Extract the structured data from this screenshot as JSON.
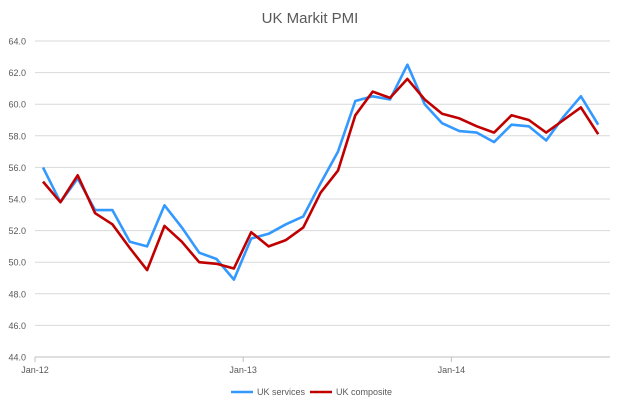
{
  "chart_data": {
    "type": "line",
    "title": "UK Markit PMI",
    "xlabel": "",
    "ylabel": "",
    "ylim": [
      44,
      64
    ],
    "yticks": [
      "44.0",
      "46.0",
      "48.0",
      "50.0",
      "52.0",
      "54.0",
      "56.0",
      "58.0",
      "60.0",
      "62.0",
      "64.0"
    ],
    "grid": true,
    "legend_position": "bottom",
    "x_tick_labels": [
      {
        "index": 0,
        "label": "Jan-12"
      },
      {
        "index": 12,
        "label": "Jan-13"
      },
      {
        "index": 24,
        "label": "Jan-14"
      }
    ],
    "categories": [
      "Jan-12",
      "Feb-12",
      "Mar-12",
      "Apr-12",
      "May-12",
      "Jun-12",
      "Jul-12",
      "Aug-12",
      "Sep-12",
      "Oct-12",
      "Nov-12",
      "Dec-12",
      "Jan-13",
      "Feb-13",
      "Mar-13",
      "Apr-13",
      "May-13",
      "Jun-13",
      "Jul-13",
      "Aug-13",
      "Sep-13",
      "Oct-13",
      "Nov-13",
      "Dec-13",
      "Jan-14",
      "Feb-14",
      "Mar-14",
      "Apr-14",
      "May-14",
      "Jun-14",
      "Jul-14",
      "Aug-14",
      "Sep-14"
    ],
    "series": [
      {
        "name": "UK services",
        "color": "#3399FF",
        "values": [
          56.0,
          53.8,
          55.3,
          53.3,
          53.3,
          51.3,
          51.0,
          53.6,
          52.2,
          50.6,
          50.2,
          48.9,
          51.5,
          51.8,
          52.4,
          52.9,
          55.0,
          57.0,
          60.2,
          60.5,
          60.3,
          62.5,
          60.0,
          58.8,
          58.3,
          58.2,
          57.6,
          58.7,
          58.6,
          57.7,
          59.2,
          60.5,
          58.7
        ]
      },
      {
        "name": "UK composite",
        "color": "#C00000",
        "values": [
          55.1,
          53.8,
          55.5,
          53.1,
          52.4,
          50.9,
          49.5,
          52.3,
          51.3,
          50.0,
          49.9,
          49.6,
          51.9,
          51.0,
          51.4,
          52.2,
          54.4,
          55.8,
          59.3,
          60.8,
          60.4,
          61.6,
          60.3,
          59.4,
          59.1,
          58.6,
          58.2,
          59.3,
          59.0,
          58.2,
          59.0,
          59.8,
          58.1
        ]
      }
    ]
  }
}
